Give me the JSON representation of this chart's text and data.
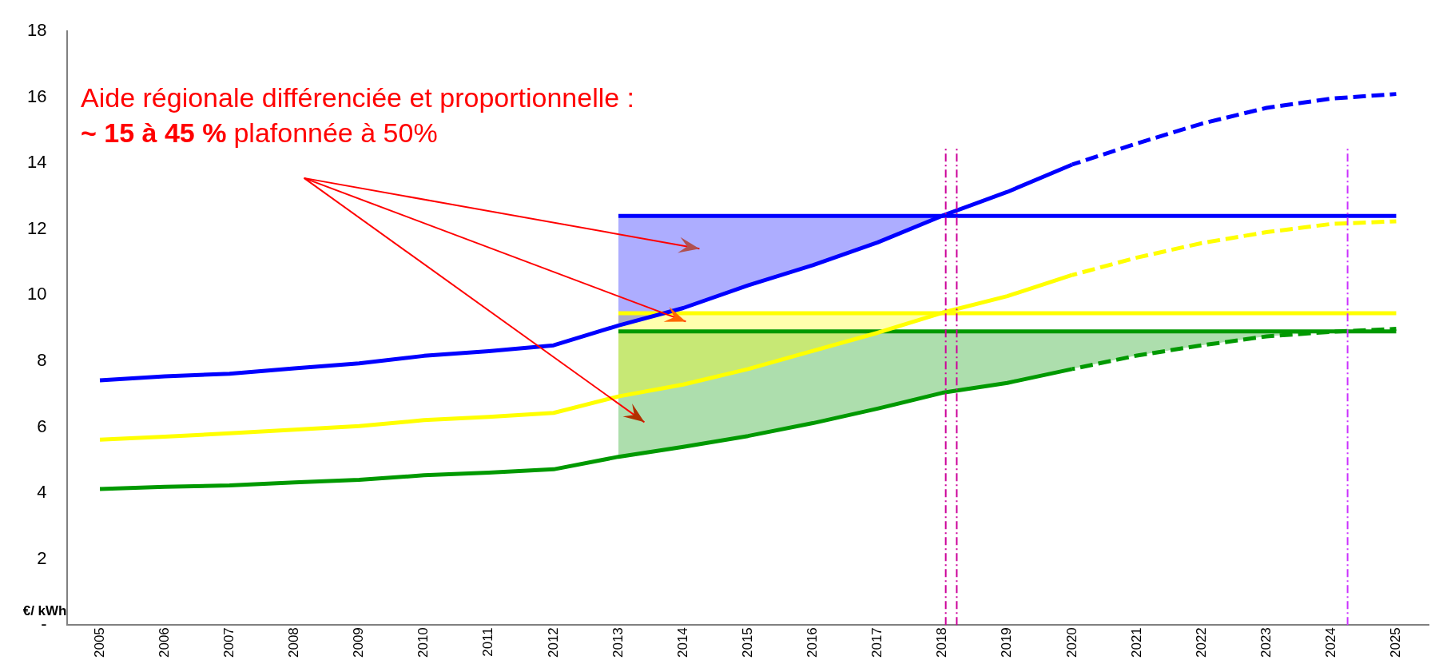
{
  "chart_data": {
    "type": "line",
    "ylabel": "€/ kWh",
    "annotations": [
      "Aide régionale différenciée et proportionnelle :",
      "~ 15 à 45 %",
      "plafonnée à 50%"
    ],
    "x": [
      2005,
      2006,
      2007,
      2008,
      2009,
      2010,
      2011,
      2012,
      2013,
      2014,
      2015,
      2016,
      2017,
      2018,
      2019,
      2020,
      2021,
      2022,
      2023,
      2024,
      2025
    ],
    "series": [
      {
        "color": "#0000ff",
        "line_style": "solid",
        "values": [
          7.42,
          7.54,
          7.62,
          7.78,
          7.93,
          8.16,
          8.3,
          8.48,
          9.08,
          9.61,
          10.3,
          10.91,
          11.6,
          12.41,
          13.13,
          13.96,
          null,
          null,
          null,
          null,
          null
        ]
      },
      {
        "color": "#0000ff",
        "line_style": "dashed",
        "values": [
          null,
          null,
          null,
          null,
          null,
          null,
          null,
          null,
          null,
          null,
          null,
          null,
          null,
          null,
          null,
          13.96,
          14.6,
          15.2,
          15.68,
          15.96,
          16.1
        ]
      },
      {
        "color": "#ffff00",
        "line_style": "solid",
        "values": [
          5.62,
          5.71,
          5.81,
          5.92,
          6.03,
          6.21,
          6.31,
          6.43,
          6.93,
          7.29,
          7.76,
          8.31,
          8.86,
          9.47,
          9.97,
          10.61,
          null,
          null,
          null,
          null,
          null
        ]
      },
      {
        "color": "#ffff00",
        "line_style": "dashed",
        "values": [
          null,
          null,
          null,
          null,
          null,
          null,
          null,
          null,
          null,
          null,
          null,
          null,
          null,
          null,
          null,
          10.61,
          11.14,
          11.58,
          11.91,
          12.16,
          12.24
        ]
      },
      {
        "color": "#009900",
        "line_style": "solid",
        "values": [
          4.12,
          4.19,
          4.23,
          4.32,
          4.4,
          4.54,
          4.62,
          4.72,
          5.1,
          5.4,
          5.73,
          6.12,
          6.56,
          7.04,
          7.34,
          7.76,
          null,
          null,
          null,
          null,
          null
        ]
      },
      {
        "color": "#009900",
        "line_style": "dashed",
        "values": [
          null,
          null,
          null,
          null,
          null,
          null,
          null,
          null,
          null,
          null,
          null,
          null,
          null,
          null,
          null,
          7.76,
          8.17,
          8.48,
          8.75,
          8.89,
          8.98
        ]
      },
      {
        "color": "#0000ff",
        "line_style": "solid",
        "x": [
          2013,
          2014,
          2015,
          2016,
          2017,
          2018,
          2019,
          2020,
          2021,
          2022,
          2023,
          2024,
          2025
        ],
        "values": [
          12.4,
          12.4,
          12.4,
          12.4,
          12.4,
          12.4,
          12.4,
          12.4,
          12.4,
          12.4,
          12.4,
          12.4,
          12.4
        ],
        "lower": [
          9.08,
          9.61,
          10.3,
          10.91,
          11.6,
          12.4,
          null,
          null,
          null,
          null,
          null,
          null,
          null
        ],
        "upper": [
          12.4,
          12.4,
          12.4,
          12.4,
          12.4,
          12.4,
          null,
          null,
          null,
          null,
          null,
          null,
          null
        ]
      },
      {
        "color": "#ffff00",
        "line_style": "solid",
        "x": [
          2013,
          2014,
          2015,
          2016,
          2017,
          2018,
          2019,
          2020,
          2021,
          2022,
          2023,
          2024,
          2025
        ],
        "values": [
          9.45,
          9.45,
          9.45,
          9.45,
          9.45,
          9.45,
          9.45,
          9.45,
          9.45,
          9.45,
          9.45,
          9.45,
          9.45
        ],
        "lower": [
          6.93,
          7.29,
          7.76,
          8.31,
          8.86,
          9.45,
          null,
          null,
          null,
          null,
          null,
          null,
          null
        ],
        "upper": [
          9.45,
          9.45,
          9.45,
          9.45,
          9.45,
          9.45,
          null,
          null,
          null,
          null,
          null,
          null,
          null
        ]
      },
      {
        "color": "#009900",
        "line_style": "solid",
        "x": [
          2013,
          2014,
          2015,
          2016,
          2017,
          2018,
          2019,
          2020,
          2021,
          2022,
          2023,
          2024,
          2025
        ],
        "values": [
          8.9,
          8.9,
          8.9,
          8.9,
          8.9,
          8.9,
          8.9,
          8.9,
          8.9,
          8.9,
          8.9,
          8.9,
          8.9
        ],
        "lower": [
          5.1,
          5.4,
          5.73,
          6.12,
          6.56,
          7.04,
          7.34,
          7.76,
          8.17,
          8.48,
          8.75,
          8.89,
          null
        ],
        "upper": [
          8.9,
          8.9,
          8.9,
          8.9,
          8.9,
          8.9,
          8.9,
          8.9,
          8.9,
          8.9,
          8.9,
          8.9,
          null
        ]
      }
    ],
    "ref_lines": [
      {
        "axis": "x",
        "value": 2018.05,
        "color": "#cc0099",
        "line_style": "dashdot"
      },
      {
        "axis": "x",
        "value": 2018.22,
        "color": "#cc0099",
        "line_style": "dashdot"
      },
      {
        "axis": "x",
        "value": 2024.25,
        "color": "#cc33ff",
        "line_style": "dashdot"
      }
    ],
    "xlim": [
      2004.5,
      2025.5
    ],
    "xticks": [
      2005,
      2006,
      2007,
      2008,
      2009,
      2010,
      2011,
      2012,
      2013,
      2014,
      2015,
      2016,
      2017,
      2018,
      2019,
      2020,
      2021,
      2022,
      2023,
      2024,
      2025
    ],
    "ylim": [
      0,
      18
    ],
    "yticks": [
      {
        "value": 0,
        "label": "-"
      },
      2,
      4,
      6,
      8,
      10,
      12,
      14,
      16,
      18
    ],
    "grid": false,
    "legend": false,
    "marker": "none"
  }
}
